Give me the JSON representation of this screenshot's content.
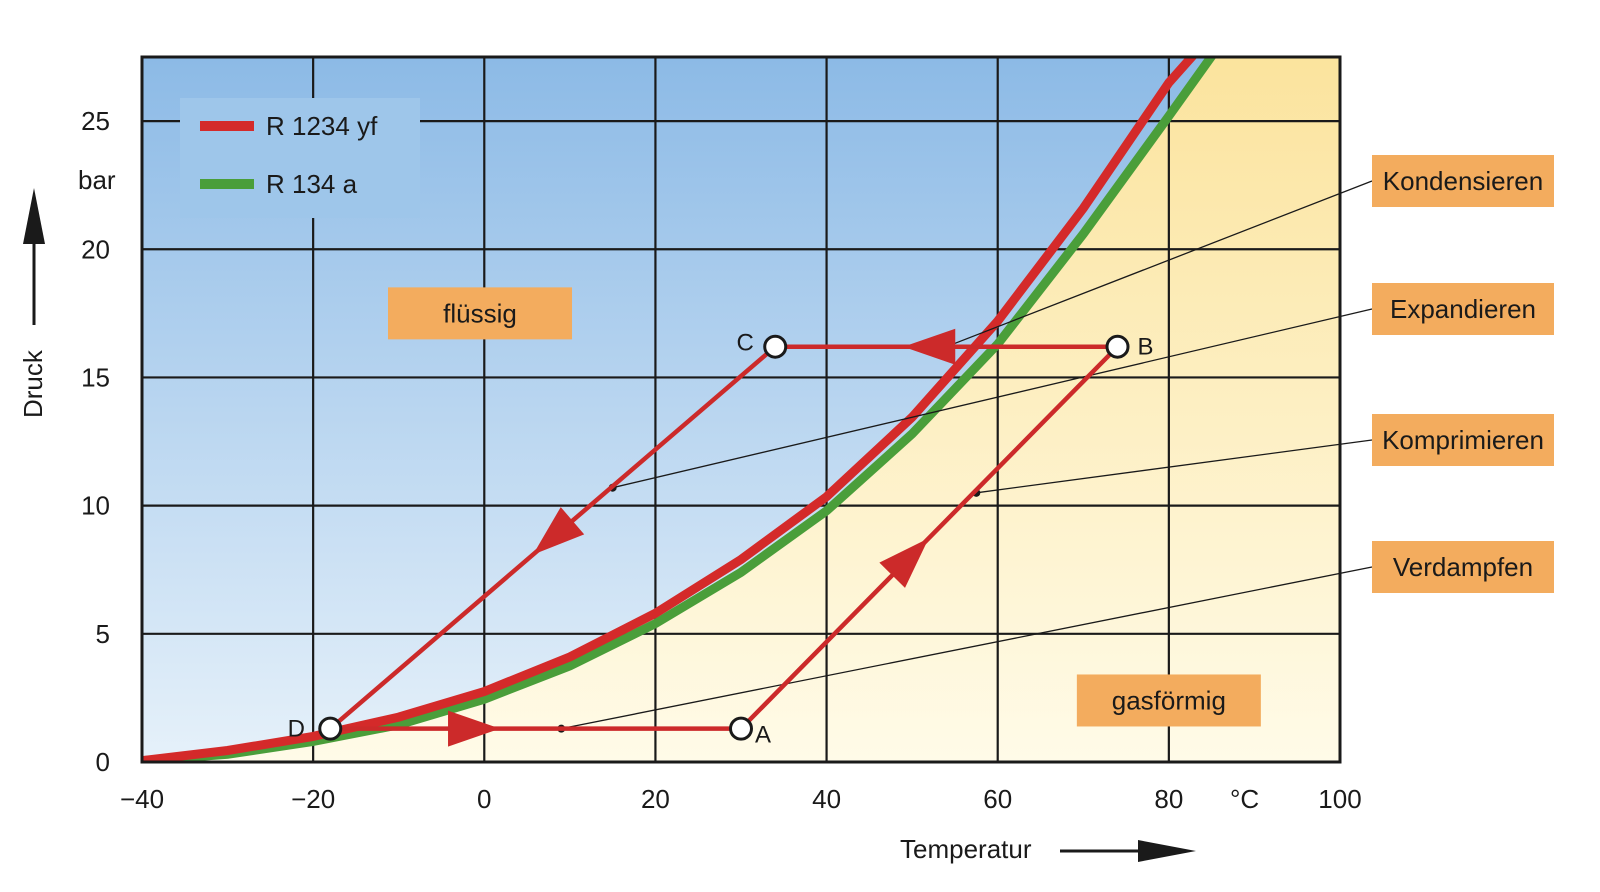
{
  "chart_data": {
    "type": "line",
    "title": "",
    "xlabel": "Temperatur",
    "ylabel": "Druck",
    "x_unit": "°C",
    "y_unit": "bar",
    "xlim": [
      -40,
      100
    ],
    "ylim": [
      0,
      27.5
    ],
    "x_ticks": [
      -40,
      -20,
      0,
      20,
      40,
      60,
      80,
      100
    ],
    "x_tick_labels": [
      "−40",
      "−20",
      "0",
      "20",
      "40",
      "60",
      "80",
      "100"
    ],
    "y_ticks": [
      0,
      5,
      10,
      15,
      20,
      25
    ],
    "y_tick_labels": [
      "0",
      "5",
      "10",
      "15",
      "20",
      "25"
    ],
    "grid": true,
    "legend_position": "top-left",
    "colors": {
      "r1234yf": "#d42a2a",
      "r134a": "#4a9e3a",
      "cycle": "#cc2a2a",
      "label_box": "#f3ac5e"
    },
    "series": [
      {
        "name": "R 1234 yf",
        "color": "#d42a2a",
        "x": [
          -40,
          -30,
          -20,
          -10,
          0,
          10,
          20,
          30,
          40,
          50,
          60,
          70,
          80,
          84
        ],
        "y": [
          0.05,
          0.45,
          1.0,
          1.75,
          2.75,
          4.1,
          5.8,
          7.9,
          10.35,
          13.45,
          17.2,
          21.6,
          26.5,
          28.0
        ]
      },
      {
        "name": "R 134 a",
        "color": "#4a9e3a",
        "x": [
          -40,
          -30,
          -20,
          -10,
          0,
          10,
          20,
          30,
          40,
          50,
          60,
          70,
          80,
          86
        ],
        "y": [
          0.05,
          0.3,
          0.8,
          1.45,
          2.45,
          3.75,
          5.4,
          7.4,
          9.8,
          12.8,
          16.3,
          20.6,
          25.2,
          28.0
        ]
      }
    ],
    "cycle_points": [
      {
        "label": "A",
        "x": 30,
        "y": 1.3
      },
      {
        "label": "B",
        "x": 74,
        "y": 16.2
      },
      {
        "label": "C",
        "x": 34,
        "y": 16.2
      },
      {
        "label": "D",
        "x": -18,
        "y": 1.3
      }
    ],
    "regions": [
      {
        "label": "flüssig",
        "x": -0.5,
        "y": 17.5
      },
      {
        "label": "gasförmig",
        "x": 80,
        "y": 2.4
      }
    ],
    "processes": [
      {
        "label": "Kondensieren",
        "leader_x": 54,
        "leader_y": 16.2
      },
      {
        "label": "Expandieren",
        "leader_x": 15,
        "leader_y": 10.7
      },
      {
        "label": "Komprimieren",
        "leader_x": 57.5,
        "leader_y": 10.5
      },
      {
        "label": "Verdampfen",
        "leader_x": 9,
        "leader_y": 1.3
      }
    ]
  }
}
